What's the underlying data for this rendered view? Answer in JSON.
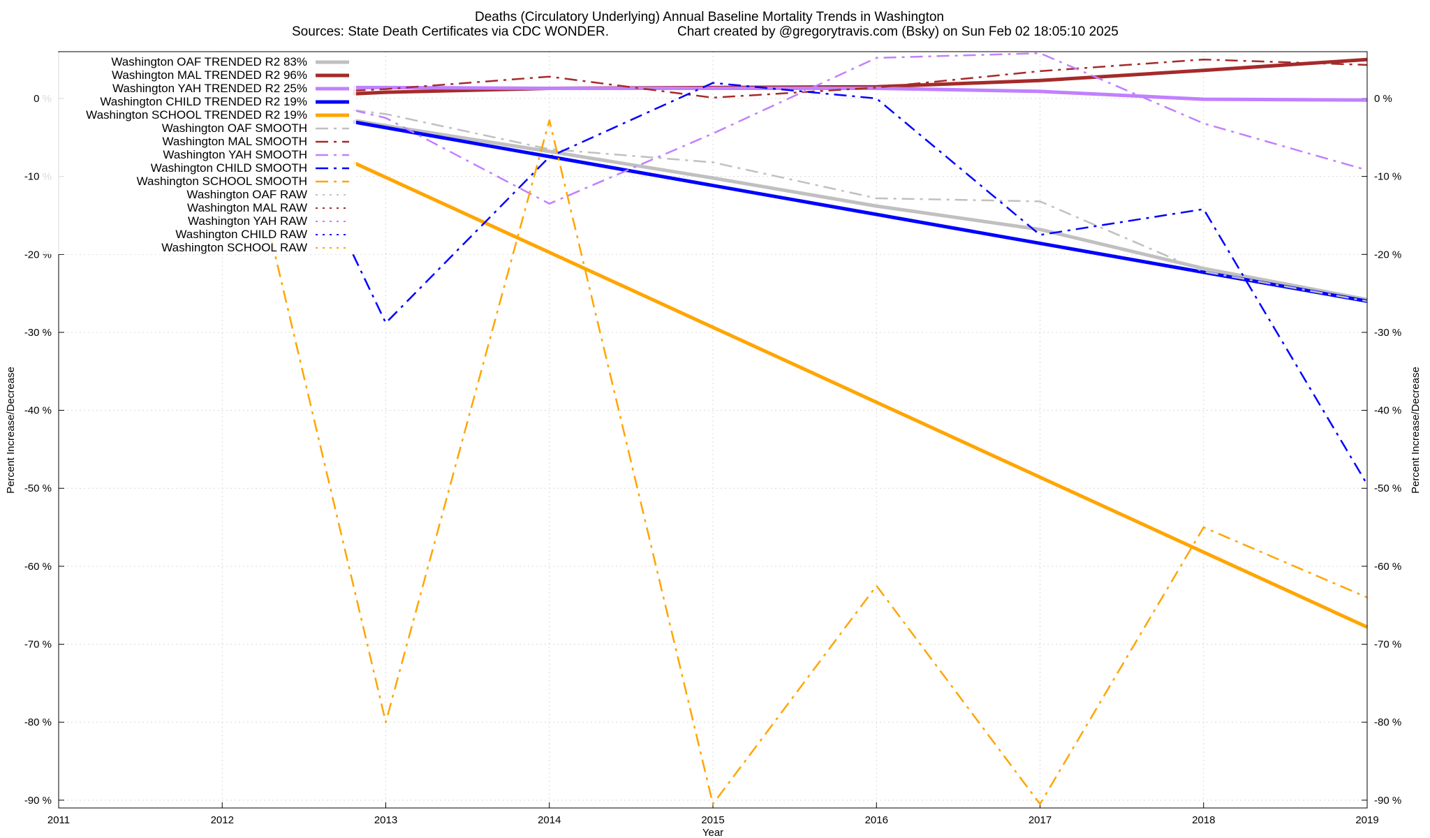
{
  "chart_data": {
    "type": "line",
    "title": "Deaths (Circulatory Underlying)  Annual Baseline Mortality Trends in Washington",
    "subtitle_left": "Sources: State Death Certificates via CDC WONDER.",
    "subtitle_right": "Chart created by @gregorytravis.com (Bsky) on Sun Feb 02 18:05:10 2025",
    "xlabel": "Year",
    "ylabel_left": "Percent Increase/Decrease",
    "ylabel_right": "Percent Increase/Decrease",
    "xlim": [
      2011,
      2019
    ],
    "ylim": [
      -91,
      6
    ],
    "x_ticks": [
      2011,
      2012,
      2013,
      2014,
      2015,
      2016,
      2017,
      2018,
      2019
    ],
    "x_tick_labels": [
      "2011",
      "2012",
      "2013",
      "2014",
      "2015",
      "2016",
      "2017",
      "2018",
      "2019"
    ],
    "y_ticks": [
      0,
      -10,
      -20,
      -30,
      -40,
      -50,
      -60,
      -70,
      -80,
      -90
    ],
    "y_tick_labels": [
      "0 %",
      "-10 %",
      "-20 %",
      "-30 %",
      "-40 %",
      "-50 %",
      "-60 %",
      "-70 %",
      "-80 %",
      "-90 %"
    ],
    "grid": true,
    "legend_position": "top-left",
    "series": [
      {
        "name": "Washington OAF TRENDED R2  83%",
        "color": "#c0c0c0",
        "style": "solid",
        "width": 5,
        "x": [
          2012.8,
          2013,
          2014,
          2015,
          2016,
          2017,
          2018,
          2019
        ],
        "y": [
          -2.8,
          -3.5,
          -6.8,
          -10.2,
          -13.8,
          -16.8,
          -21.8,
          -25.8
        ]
      },
      {
        "name": "Washington MAL TRENDED R2  96%",
        "color": "#a52a2a",
        "style": "solid",
        "width": 5,
        "x": [
          2012.8,
          2013,
          2014,
          2015,
          2016,
          2017,
          2018,
          2019
        ],
        "y": [
          0.6,
          0.8,
          1.3,
          1.4,
          1.5,
          2.3,
          3.6,
          5.0
        ]
      },
      {
        "name": "Washington YAH TRENDED R2  25%",
        "color": "#c080ff",
        "style": "solid",
        "width": 5,
        "x": [
          2012.8,
          2013,
          2014,
          2015,
          2016,
          2017,
          2018,
          2019
        ],
        "y": [
          1.4,
          1.4,
          1.3,
          1.3,
          1.3,
          0.9,
          -0.1,
          -0.2
        ]
      },
      {
        "name": "Washington CHILD TRENDED R2  19%",
        "color": "#0000ff",
        "style": "solid",
        "width": 5,
        "x": [
          2012.8,
          2019
        ],
        "y": [
          -3.0,
          -26.0
        ]
      },
      {
        "name": "Washington SCHOOL TRENDED R2  19%",
        "color": "#ffa500",
        "style": "solid",
        "width": 5,
        "x": [
          2012.8,
          2019
        ],
        "y": [
          -8.2,
          -67.8
        ]
      },
      {
        "name": "Washington OAF SMOOTH",
        "color": "#c0c0c0",
        "style": "dashdot",
        "width": 2.5,
        "x": [
          2012.8,
          2013,
          2014,
          2015,
          2016,
          2017,
          2018,
          2019
        ],
        "y": [
          -1.5,
          -2.0,
          -6.5,
          -8.2,
          -12.8,
          -13.2,
          -22.2,
          -26.0
        ]
      },
      {
        "name": "Washington MAL SMOOTH",
        "color": "#a52a2a",
        "style": "dashdot",
        "width": 2.5,
        "x": [
          2012.8,
          2013,
          2014,
          2015,
          2016,
          2017,
          2018,
          2019
        ],
        "y": [
          1.0,
          1.2,
          2.8,
          0.1,
          1.4,
          3.5,
          5.0,
          4.3
        ]
      },
      {
        "name": "Washington YAH SMOOTH",
        "color": "#c080ff",
        "style": "dashdot",
        "width": 2.5,
        "x": [
          2012.8,
          2013,
          2014,
          2015,
          2016,
          2017,
          2018,
          2019
        ],
        "y": [
          -1.5,
          -2.5,
          -13.5,
          -4.5,
          5.2,
          5.8,
          -3.2,
          -9.2
        ]
      },
      {
        "name": "Washington CHILD SMOOTH",
        "color": "#0000ff",
        "style": "dashdot",
        "width": 2.5,
        "x": [
          2012.8,
          2013,
          2014,
          2015,
          2016,
          2017,
          2018,
          2019
        ],
        "y": [
          -20.0,
          -28.8,
          -7.5,
          2.0,
          0.0,
          -17.5,
          -14.2,
          -49.5
        ]
      },
      {
        "name": "Washington SCHOOL SMOOTH",
        "color": "#ffa500",
        "style": "dashdot",
        "width": 2.5,
        "x": [
          2012.3,
          2013,
          2014,
          2015,
          2016,
          2017,
          2018,
          2019
        ],
        "y": [
          -18.0,
          -80.0,
          -2.8,
          -90.5,
          -62.5,
          -90.5,
          -55.0,
          -64.0
        ]
      },
      {
        "name": "Washington OAF RAW",
        "color": "#c0c0c0",
        "style": "dotted",
        "width": 2,
        "x": [],
        "y": []
      },
      {
        "name": "Washington MAL RAW",
        "color": "#a52a2a",
        "style": "dotted",
        "width": 2,
        "x": [],
        "y": []
      },
      {
        "name": "Washington YAH RAW",
        "color": "#c080ff",
        "style": "dotted",
        "width": 2,
        "x": [],
        "y": []
      },
      {
        "name": "Washington CHILD RAW",
        "color": "#0000ff",
        "style": "dotted",
        "width": 2,
        "x": [],
        "y": []
      },
      {
        "name": "Washington SCHOOL RAW",
        "color": "#ffa500",
        "style": "dotted",
        "width": 2,
        "x": [],
        "y": []
      }
    ]
  }
}
